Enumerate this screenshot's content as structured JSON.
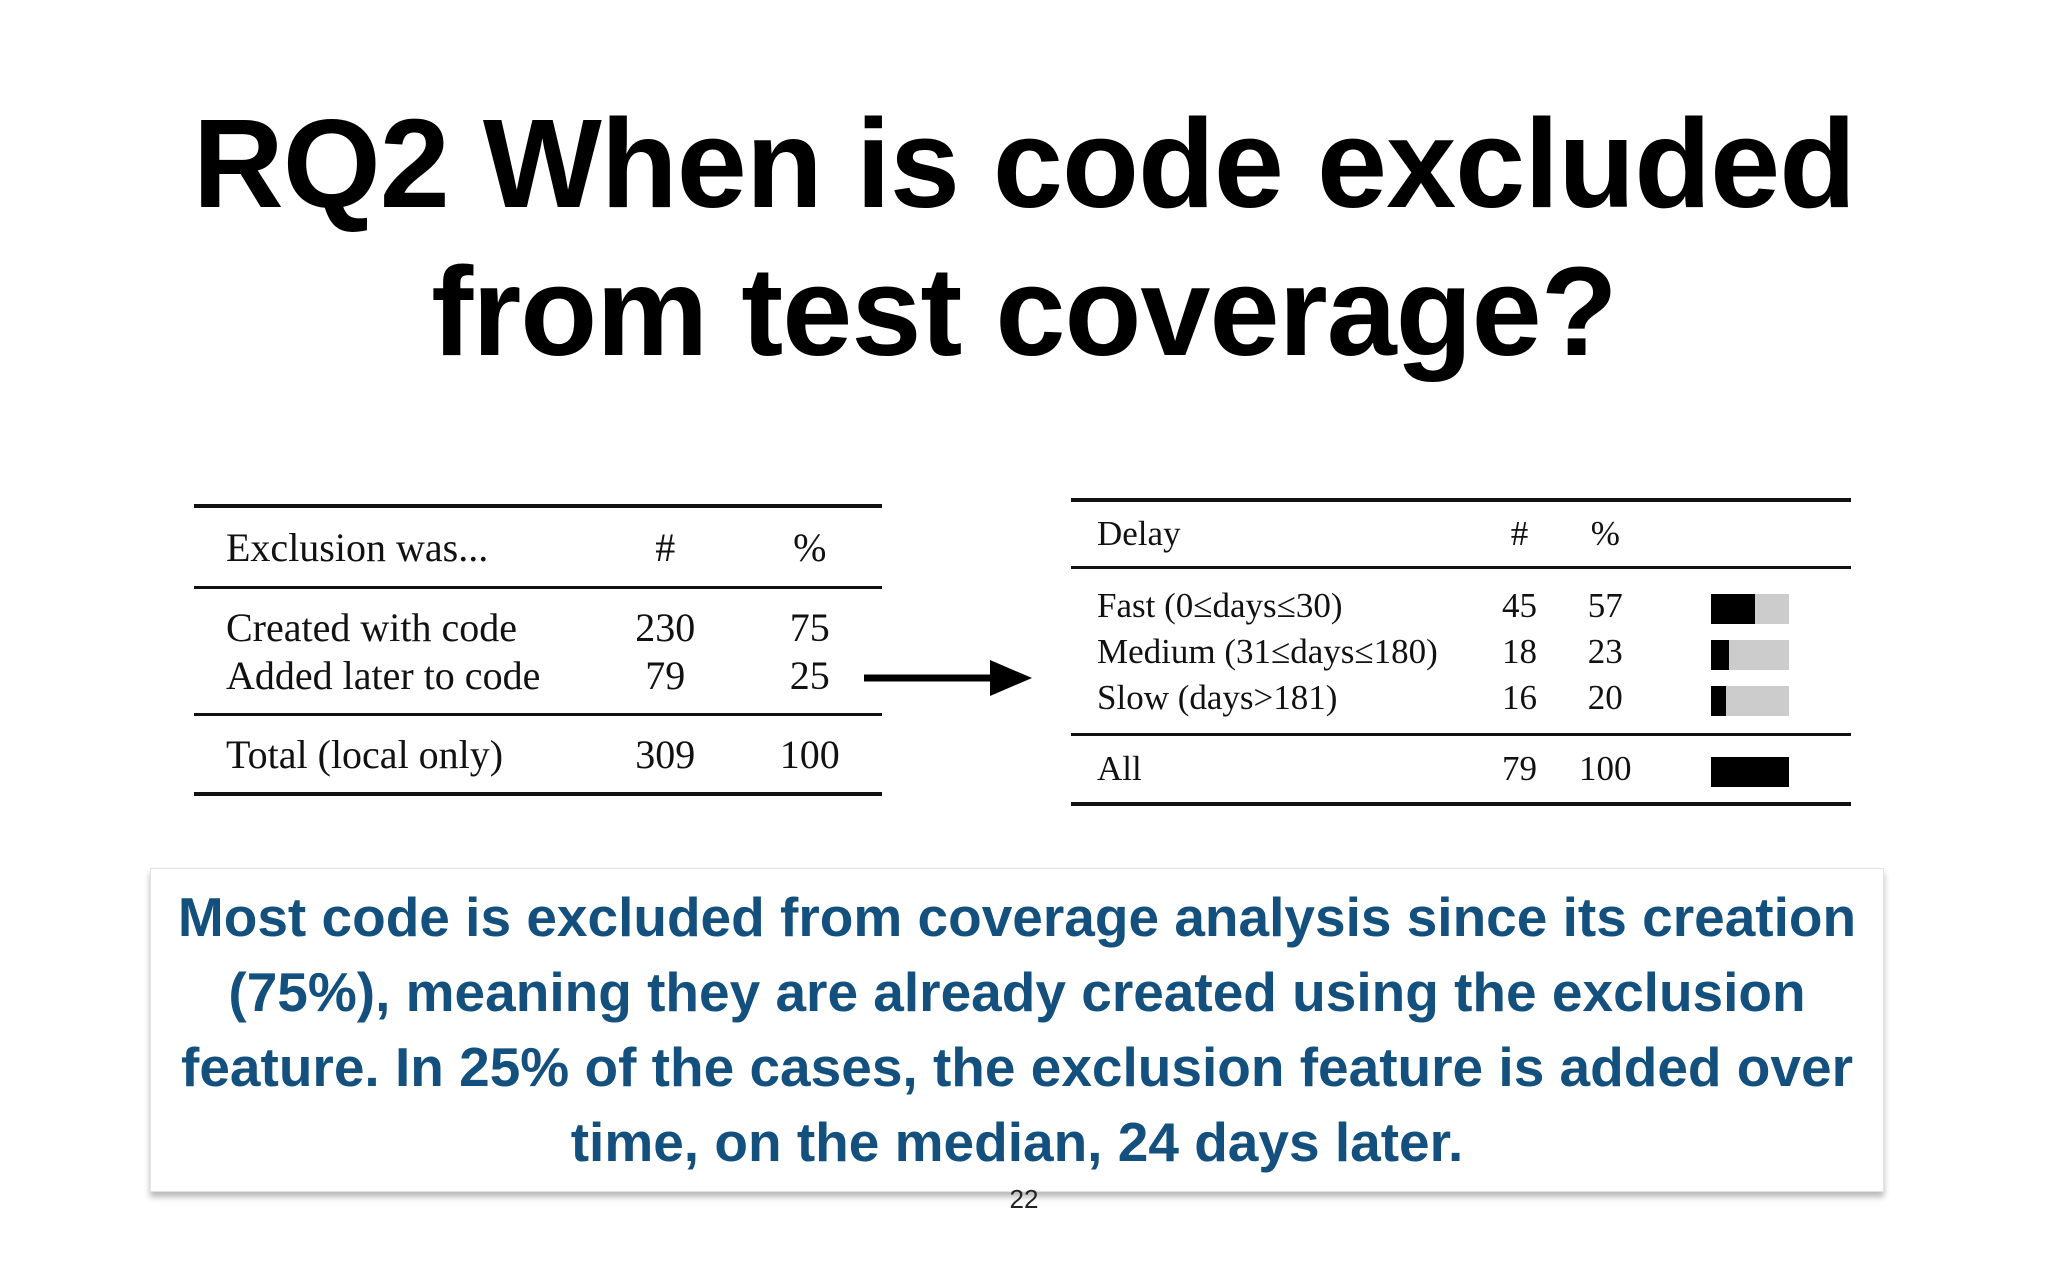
{
  "slide": {
    "title_line1": "RQ2 When is code excluded",
    "title_line2": "from test coverage?",
    "page_number": "22"
  },
  "table_exclusion": {
    "headers": [
      "Exclusion was...",
      "#",
      "%"
    ],
    "rows": [
      {
        "label": "Created with code",
        "count": "230",
        "percent": "75"
      },
      {
        "label": "Added later to code",
        "count": "79",
        "percent": "25"
      }
    ],
    "total": {
      "label": "Total (local only)",
      "count": "309",
      "percent": "100"
    }
  },
  "table_delay": {
    "headers": [
      "Delay",
      "#",
      "%"
    ],
    "rows": [
      {
        "label": "Fast (0≤days≤30)",
        "count": "45",
        "percent": "57",
        "bar_fraction": 0.57
      },
      {
        "label": "Medium (31≤days≤180)",
        "count": "18",
        "percent": "23",
        "bar_fraction": 0.23
      },
      {
        "label": "Slow (days>181)",
        "count": "16",
        "percent": "20",
        "bar_fraction": 0.2
      }
    ],
    "total": {
      "label": "All",
      "count": "79",
      "percent": "100",
      "bar_fraction": 1.0
    }
  },
  "callout": {
    "text": "Most code is excluded from coverage analysis since its creation (75%), meaning they are already created using the exclusion feature. In 25% of the cases, the exclusion feature is added over time, on the median, 24 days later."
  },
  "colors": {
    "callout_text": "#13507e",
    "bar_fill": "#000000",
    "bar_track": "#cccccc"
  }
}
